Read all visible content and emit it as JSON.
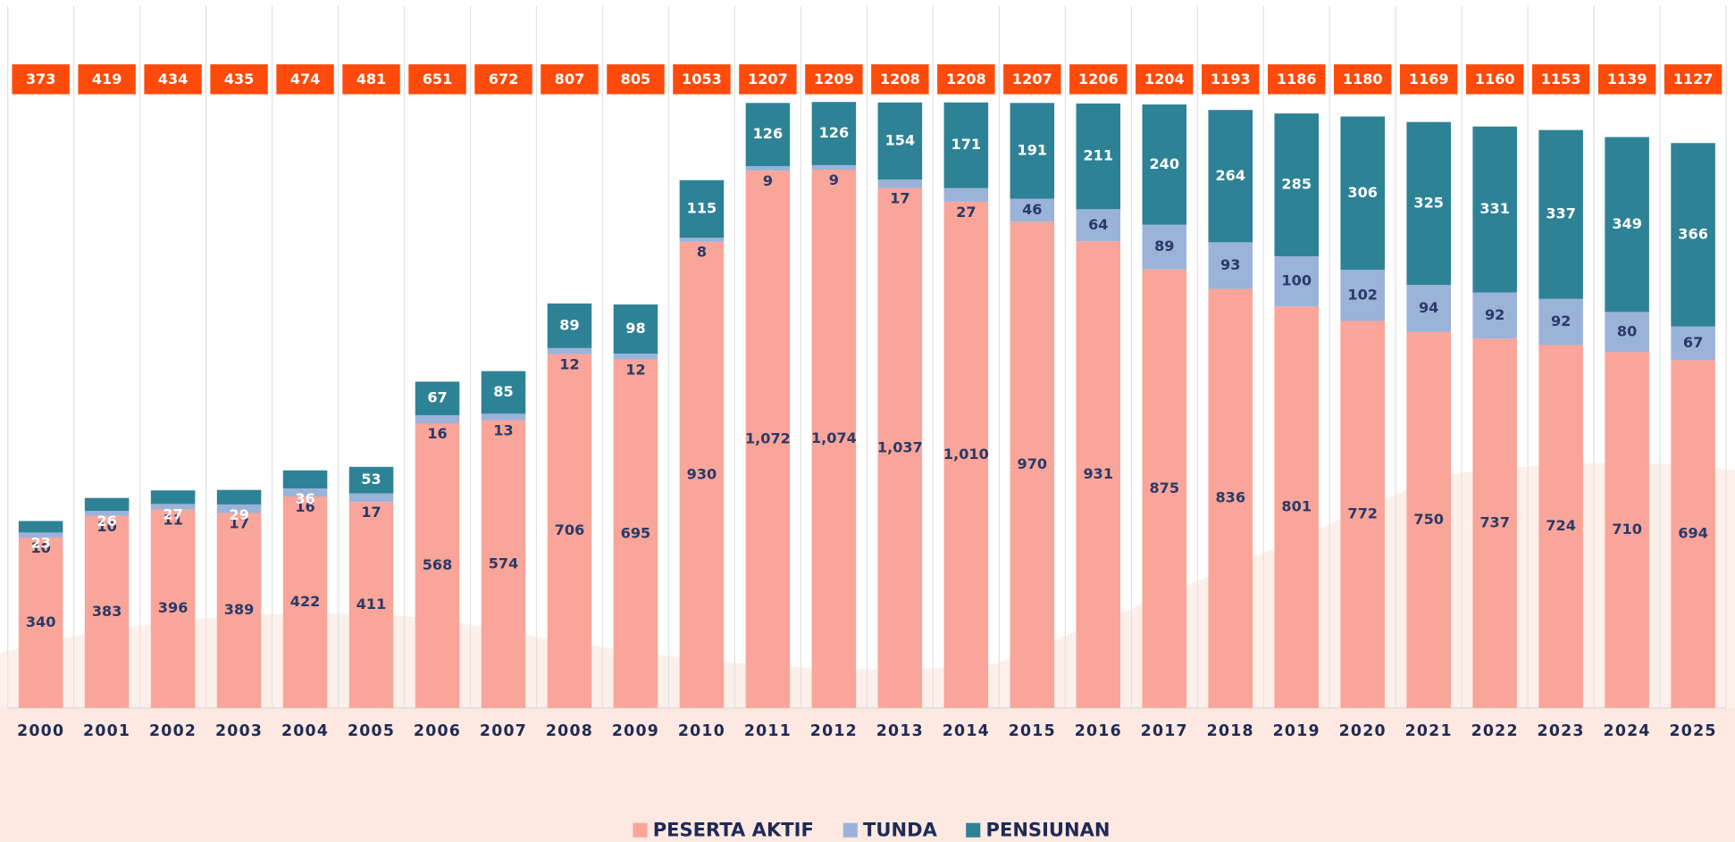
{
  "chart_data": {
    "type": "stacked_bar",
    "categories": [
      "2000",
      "2001",
      "2002",
      "2003",
      "2004",
      "2005",
      "2006",
      "2007",
      "2008",
      "2009",
      "2010",
      "2011",
      "2012",
      "2013",
      "2014",
      "2015",
      "2016",
      "2017",
      "2018",
      "2019",
      "2020",
      "2021",
      "2022",
      "2023",
      "2024",
      "2025"
    ],
    "series": [
      {
        "name": "PESERTA AKTIF",
        "color": "#f9a59a",
        "values": [
          340,
          383,
          396,
          389,
          422,
          411,
          568,
          574,
          706,
          695,
          930,
          1072,
          1074,
          1037,
          1010,
          970,
          931,
          875,
          836,
          801,
          772,
          750,
          737,
          724,
          710,
          694
        ],
        "value_labels": [
          "340",
          "383",
          "396",
          "389",
          "422",
          "411",
          "568",
          "574",
          "706",
          "695",
          "930",
          "1,072",
          "1,074",
          "1,037",
          "1,010",
          "970",
          "931",
          "875",
          "836",
          "801",
          "772",
          "750",
          "737",
          "724",
          "710",
          "694"
        ]
      },
      {
        "name": "TUNDA",
        "color": "#9bb3d9",
        "values": [
          10,
          10,
          11,
          17,
          16,
          17,
          16,
          13,
          12,
          12,
          8,
          9,
          9,
          17,
          27,
          46,
          64,
          89,
          93,
          100,
          102,
          94,
          92,
          92,
          80,
          67
        ]
      },
      {
        "name": "PENSIUNAN",
        "color": "#2e8296",
        "values": [
          23,
          26,
          27,
          29,
          36,
          53,
          67,
          85,
          89,
          98,
          115,
          126,
          126,
          154,
          171,
          191,
          211,
          240,
          264,
          285,
          306,
          325,
          331,
          337,
          349,
          366
        ]
      }
    ],
    "totals": [
      373,
      419,
      434,
      435,
      474,
      481,
      651,
      672,
      807,
      805,
      1053,
      1207,
      1209,
      1208,
      1208,
      1207,
      1206,
      1204,
      1193,
      1186,
      1180,
      1169,
      1160,
      1153,
      1139,
      1127
    ],
    "totals_color": "#fe4a0a",
    "legend": "bottom"
  }
}
